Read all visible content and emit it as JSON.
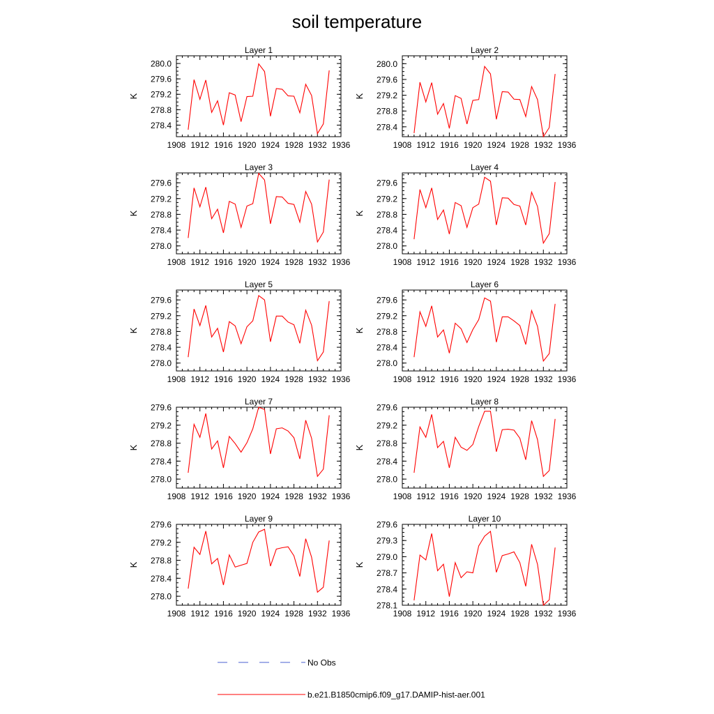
{
  "figure": {
    "title": "soil temperature"
  },
  "legend": [
    {
      "name": "No Obs",
      "color": "#4a5fd0",
      "dash": "dashed"
    },
    {
      "name": "b.e21.B1850cmip6.f09_g17.DAMIP-hist-aer.001",
      "color": "#ff0000",
      "dash": "solid"
    }
  ],
  "chart_data": [
    {
      "type": "line",
      "title": "Layer 1",
      "ylabel": "K",
      "xlim": [
        1908,
        1936
      ],
      "ylim": [
        278.1,
        280.2
      ],
      "xticks": [
        1908,
        1912,
        1916,
        1920,
        1924,
        1928,
        1932,
        1936
      ],
      "yticks": [
        278.4,
        278.8,
        279.2,
        279.6,
        280.0
      ],
      "ytick_decimals": 1,
      "series": [
        {
          "color": "#ff0000",
          "x": [
            1910,
            1911,
            1912,
            1913,
            1914,
            1915,
            1916,
            1917,
            1918,
            1919,
            1920,
            1921,
            1922,
            1923,
            1924,
            1925,
            1926,
            1927,
            1928,
            1929,
            1930,
            1931,
            1932,
            1933,
            1934
          ],
          "y": [
            278.28,
            279.58,
            279.07,
            279.57,
            278.73,
            279.03,
            278.4,
            279.24,
            279.18,
            278.49,
            279.14,
            279.15,
            279.99,
            279.79,
            278.63,
            279.35,
            279.33,
            279.16,
            279.15,
            278.72,
            279.46,
            279.17,
            278.18,
            278.43,
            279.82
          ]
        }
      ]
    },
    {
      "type": "line",
      "title": "Layer 2",
      "ylabel": "K",
      "xlim": [
        1908,
        1936
      ],
      "ylim": [
        278.15,
        280.2
      ],
      "xticks": [
        1908,
        1912,
        1916,
        1920,
        1924,
        1928,
        1932,
        1936
      ],
      "yticks": [
        278.4,
        278.8,
        279.2,
        279.6,
        280.0
      ],
      "ytick_decimals": 1,
      "series": [
        {
          "color": "#ff0000",
          "x": [
            1910,
            1911,
            1912,
            1913,
            1914,
            1915,
            1916,
            1917,
            1918,
            1919,
            1920,
            1921,
            1922,
            1923,
            1924,
            1925,
            1926,
            1927,
            1928,
            1929,
            1930,
            1931,
            1932,
            1933,
            1934
          ],
          "y": [
            278.24,
            279.53,
            279.03,
            279.52,
            278.72,
            278.99,
            278.36,
            279.19,
            279.12,
            278.47,
            279.07,
            279.09,
            279.93,
            279.74,
            278.59,
            279.29,
            279.28,
            279.1,
            279.09,
            278.66,
            279.42,
            279.09,
            278.15,
            278.38,
            279.74
          ]
        }
      ]
    },
    {
      "type": "line",
      "title": "Layer 3",
      "ylabel": "K",
      "xlim": [
        1908,
        1936
      ],
      "ylim": [
        277.8,
        279.85
      ],
      "xticks": [
        1908,
        1912,
        1916,
        1920,
        1924,
        1928,
        1932,
        1936
      ],
      "yticks": [
        278.0,
        278.4,
        278.8,
        279.2,
        279.6
      ],
      "ytick_decimals": 1,
      "series": [
        {
          "color": "#ff0000",
          "x": [
            1910,
            1911,
            1912,
            1913,
            1914,
            1915,
            1916,
            1917,
            1918,
            1919,
            1920,
            1921,
            1922,
            1923,
            1924,
            1925,
            1926,
            1927,
            1928,
            1929,
            1930,
            1931,
            1932,
            1933,
            1934
          ],
          "y": [
            278.2,
            279.47,
            278.99,
            279.49,
            278.69,
            278.93,
            278.33,
            279.13,
            279.06,
            278.47,
            279.01,
            279.07,
            279.84,
            279.67,
            278.56,
            279.25,
            279.24,
            279.08,
            279.05,
            278.6,
            279.38,
            279.06,
            278.1,
            278.35,
            279.68
          ]
        }
      ]
    },
    {
      "type": "line",
      "title": "Layer 4",
      "ylabel": "K",
      "xlim": [
        1908,
        1936
      ],
      "ylim": [
        277.8,
        279.85
      ],
      "xticks": [
        1908,
        1912,
        1916,
        1920,
        1924,
        1928,
        1932,
        1936
      ],
      "yticks": [
        278.0,
        278.4,
        278.8,
        279.2,
        279.6
      ],
      "ytick_decimals": 1,
      "series": [
        {
          "color": "#ff0000",
          "x": [
            1910,
            1911,
            1912,
            1913,
            1914,
            1915,
            1916,
            1917,
            1918,
            1919,
            1920,
            1921,
            1922,
            1923,
            1924,
            1925,
            1926,
            1927,
            1928,
            1929,
            1930,
            1931,
            1932,
            1933,
            1934
          ],
          "y": [
            278.17,
            279.43,
            278.97,
            279.47,
            278.67,
            278.91,
            278.3,
            279.1,
            279.02,
            278.47,
            278.97,
            279.06,
            279.74,
            279.64,
            278.53,
            279.22,
            279.21,
            279.05,
            279.01,
            278.53,
            279.36,
            279.0,
            278.07,
            278.31,
            279.62
          ]
        }
      ]
    },
    {
      "type": "line",
      "title": "Layer 5",
      "ylabel": "K",
      "xlim": [
        1908,
        1936
      ],
      "ylim": [
        277.8,
        279.85
      ],
      "xticks": [
        1908,
        1912,
        1916,
        1920,
        1924,
        1928,
        1932,
        1936
      ],
      "yticks": [
        278.0,
        278.4,
        278.8,
        279.2,
        279.6
      ],
      "ytick_decimals": 1,
      "series": [
        {
          "color": "#ff0000",
          "x": [
            1910,
            1911,
            1912,
            1913,
            1914,
            1915,
            1916,
            1917,
            1918,
            1919,
            1920,
            1921,
            1922,
            1923,
            1924,
            1925,
            1926,
            1927,
            1928,
            1929,
            1930,
            1931,
            1932,
            1933,
            1934
          ],
          "y": [
            278.15,
            279.37,
            278.95,
            279.46,
            278.66,
            278.88,
            278.28,
            279.05,
            278.94,
            278.49,
            278.92,
            279.07,
            279.71,
            279.6,
            278.54,
            279.19,
            279.19,
            279.04,
            278.97,
            278.5,
            279.34,
            278.96,
            278.06,
            278.28,
            279.57
          ]
        }
      ]
    },
    {
      "type": "line",
      "title": "Layer 6",
      "ylabel": "K",
      "xlim": [
        1908,
        1936
      ],
      "ylim": [
        277.8,
        279.85
      ],
      "xticks": [
        1908,
        1912,
        1916,
        1920,
        1924,
        1928,
        1932,
        1936
      ],
      "yticks": [
        278.0,
        278.4,
        278.8,
        279.2,
        279.6
      ],
      "ytick_decimals": 1,
      "series": [
        {
          "color": "#ff0000",
          "x": [
            1910,
            1911,
            1912,
            1913,
            1914,
            1915,
            1916,
            1917,
            1918,
            1919,
            1920,
            1921,
            1922,
            1923,
            1924,
            1925,
            1926,
            1927,
            1928,
            1929,
            1930,
            1931,
            1932,
            1933,
            1934
          ],
          "y": [
            278.15,
            279.3,
            278.93,
            279.45,
            278.66,
            278.84,
            278.25,
            279.01,
            278.87,
            278.52,
            278.85,
            279.1,
            279.65,
            279.57,
            278.53,
            279.17,
            279.17,
            279.07,
            278.95,
            278.47,
            279.33,
            278.93,
            278.05,
            278.24,
            279.5
          ]
        }
      ]
    },
    {
      "type": "line",
      "title": "Layer 7",
      "ylabel": "K",
      "xlim": [
        1908,
        1936
      ],
      "ylim": [
        277.8,
        279.6
      ],
      "xticks": [
        1908,
        1912,
        1916,
        1920,
        1924,
        1928,
        1932,
        1936
      ],
      "yticks": [
        278.0,
        278.4,
        278.8,
        279.2,
        279.6
      ],
      "ytick_decimals": 1,
      "series": [
        {
          "color": "#ff0000",
          "x": [
            1910,
            1911,
            1912,
            1913,
            1914,
            1915,
            1916,
            1917,
            1918,
            1919,
            1920,
            1921,
            1922,
            1923,
            1924,
            1925,
            1926,
            1927,
            1928,
            1929,
            1930,
            1931,
            1932,
            1933,
            1934
          ],
          "y": [
            278.14,
            279.22,
            278.93,
            279.46,
            278.67,
            278.85,
            278.25,
            278.95,
            278.79,
            278.6,
            278.81,
            279.12,
            279.6,
            279.55,
            278.56,
            279.12,
            279.14,
            279.07,
            278.92,
            278.45,
            279.31,
            278.91,
            278.06,
            278.22,
            279.42
          ]
        }
      ]
    },
    {
      "type": "line",
      "title": "Layer 8",
      "ylabel": "K",
      "xlim": [
        1908,
        1936
      ],
      "ylim": [
        277.8,
        279.6
      ],
      "xticks": [
        1908,
        1912,
        1916,
        1920,
        1924,
        1928,
        1932,
        1936
      ],
      "yticks": [
        278.0,
        278.4,
        278.8,
        279.2,
        279.6
      ],
      "ytick_decimals": 1,
      "series": [
        {
          "color": "#ff0000",
          "x": [
            1910,
            1911,
            1912,
            1913,
            1914,
            1915,
            1916,
            1917,
            1918,
            1919,
            1920,
            1921,
            1922,
            1923,
            1924,
            1925,
            1926,
            1927,
            1928,
            1929,
            1930,
            1931,
            1932,
            1933,
            1934
          ],
          "y": [
            278.14,
            279.16,
            278.93,
            279.44,
            278.7,
            278.84,
            278.25,
            278.93,
            278.71,
            278.64,
            278.77,
            279.17,
            279.51,
            279.51,
            278.61,
            279.1,
            279.11,
            279.09,
            278.91,
            278.43,
            279.3,
            278.88,
            278.06,
            278.19,
            279.34
          ]
        }
      ]
    },
    {
      "type": "line",
      "title": "Layer 9",
      "ylabel": "K",
      "xlim": [
        1908,
        1936
      ],
      "ylim": [
        277.8,
        279.6
      ],
      "xticks": [
        1908,
        1912,
        1916,
        1920,
        1924,
        1928,
        1932,
        1936
      ],
      "yticks": [
        278.0,
        278.4,
        278.8,
        279.2,
        279.6
      ],
      "ytick_decimals": 1,
      "series": [
        {
          "color": "#ff0000",
          "x": [
            1910,
            1911,
            1912,
            1913,
            1914,
            1915,
            1916,
            1917,
            1918,
            1919,
            1920,
            1921,
            1922,
            1923,
            1924,
            1925,
            1926,
            1927,
            1928,
            1929,
            1930,
            1931,
            1932,
            1933,
            1934
          ],
          "y": [
            278.17,
            279.09,
            278.93,
            279.45,
            278.72,
            278.84,
            278.25,
            278.92,
            278.65,
            278.69,
            278.73,
            279.2,
            279.43,
            279.49,
            278.67,
            279.05,
            279.08,
            279.1,
            278.9,
            278.44,
            279.28,
            278.87,
            278.09,
            278.2,
            279.24
          ]
        }
      ]
    },
    {
      "type": "line",
      "title": "Layer 10",
      "ylabel": "K",
      "xlim": [
        1908,
        1936
      ],
      "ylim": [
        278.1,
        279.6
      ],
      "xticks": [
        1908,
        1912,
        1916,
        1920,
        1924,
        1928,
        1932,
        1936
      ],
      "yticks": [
        278.1,
        278.4,
        278.7,
        279.0,
        279.3,
        279.6
      ],
      "ytick_decimals": 1,
      "series": [
        {
          "color": "#ff0000",
          "x": [
            1910,
            1911,
            1912,
            1913,
            1914,
            1915,
            1916,
            1917,
            1918,
            1919,
            1920,
            1921,
            1922,
            1923,
            1924,
            1925,
            1926,
            1927,
            1928,
            1929,
            1930,
            1931,
            1932,
            1933,
            1934
          ],
          "y": [
            278.19,
            279.03,
            278.94,
            279.43,
            278.74,
            278.86,
            278.26,
            278.89,
            278.61,
            278.72,
            278.7,
            279.2,
            279.38,
            279.47,
            278.71,
            279.02,
            279.05,
            279.09,
            278.89,
            278.45,
            279.23,
            278.86,
            278.1,
            278.2,
            279.17
          ]
        }
      ]
    }
  ]
}
